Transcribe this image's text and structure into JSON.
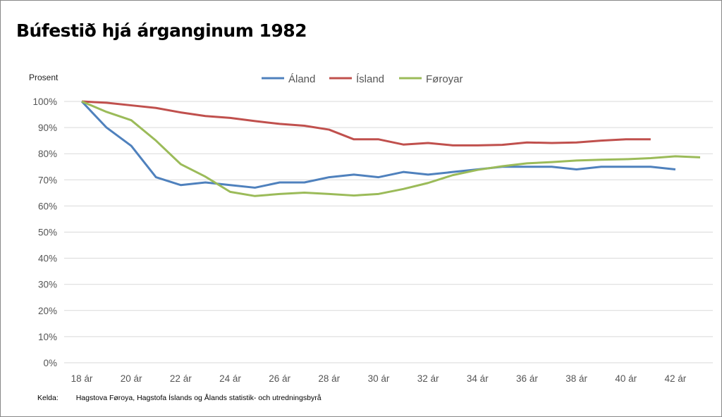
{
  "chart_data": {
    "type": "line",
    "title": "Búfestið hjá árganginum 1982",
    "ylabel": "Prosent",
    "xlabel": "",
    "ylim": [
      0,
      100
    ],
    "y_ticks": [
      "0%",
      "10%",
      "20%",
      "30%",
      "40%",
      "50%",
      "60%",
      "70%",
      "80%",
      "90%",
      "100%"
    ],
    "x_ticks": [
      "18 ár",
      "20 ár",
      "22 ár",
      "24 ár",
      "26 ár",
      "28 ár",
      "30 ár",
      "32 ár",
      "34 ár",
      "36 ár",
      "38 ár",
      "40 ár",
      "42 ár"
    ],
    "x_start": 18,
    "grid": true,
    "legend": "top-center",
    "series": [
      {
        "name": "Áland",
        "color": "#4f81bd",
        "values": [
          100,
          90,
          83,
          71,
          68,
          69,
          68,
          67,
          69,
          69,
          71,
          72,
          71,
          73,
          72,
          73,
          74,
          75,
          75,
          75,
          74,
          75,
          75,
          75,
          74
        ]
      },
      {
        "name": "Ísland",
        "color": "#c0504d",
        "values": [
          100,
          99.5,
          98.5,
          97.5,
          95.8,
          94.4,
          93.7,
          92.5,
          91.4,
          90.7,
          89.2,
          85.5,
          85.5,
          83.5,
          84.1,
          83.2,
          83.2,
          83.4,
          84.3,
          84.1,
          84.3,
          85,
          85.5,
          85.5
        ]
      },
      {
        "name": "Føroyar",
        "color": "#9bbb59",
        "values": [
          100,
          96,
          92.8,
          85,
          76,
          71.2,
          65.4,
          63.8,
          64.6,
          65.1,
          64.6,
          64,
          64.6,
          66.5,
          68.8,
          71.8,
          73.8,
          75.2,
          76.3,
          76.8,
          77.4,
          77.7,
          77.9,
          78.3,
          79,
          78.6
        ]
      }
    ]
  },
  "source": {
    "label": "Kelda:",
    "text": "Hagstova Føroya, Hagstofa Íslands og Ålands statistik- och utredningsbyrå"
  }
}
